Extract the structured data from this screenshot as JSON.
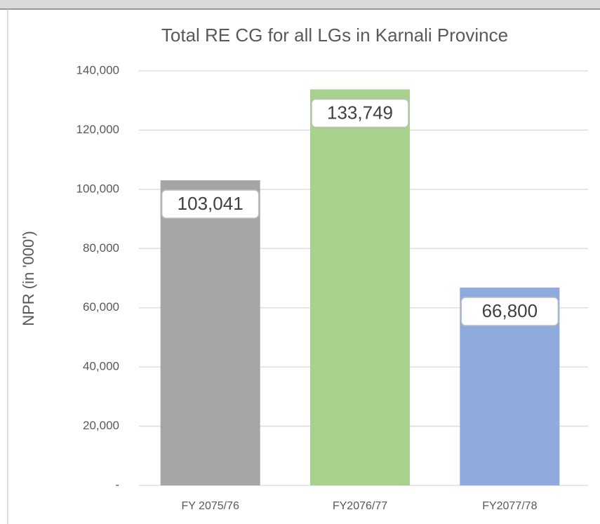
{
  "chart_data": {
    "type": "bar",
    "title": "Total RE CG for all LGs in Karnali Province",
    "y_label": "NPR (in '000')",
    "categories": [
      "FY 2075/76",
      "FY2076/77",
      "FY2077/78"
    ],
    "values": [
      103041,
      133749,
      66800
    ],
    "value_labels": [
      "103,041",
      "133,749",
      "66,800"
    ],
    "colors": [
      "#a5a5a5",
      "#a9d18e",
      "#8faadc"
    ],
    "ylim": [
      0,
      140000
    ],
    "yticks": [
      {
        "value": 0,
        "label": "-"
      },
      {
        "value": 20000,
        "label": "20,000"
      },
      {
        "value": 40000,
        "label": "40,000"
      },
      {
        "value": 60000,
        "label": "60,000"
      },
      {
        "value": 80000,
        "label": "80,000"
      },
      {
        "value": 100000,
        "label": "100,000"
      },
      {
        "value": 120000,
        "label": "120,000"
      },
      {
        "value": 140000,
        "label": "140,000"
      }
    ],
    "grid": true
  }
}
